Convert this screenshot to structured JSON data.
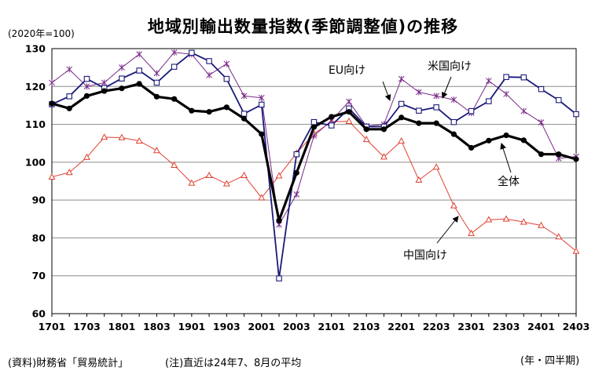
{
  "title": "地域別輸出数量指数(季節調整値)の推移",
  "unit_label": "(2020年=100)",
  "source_note": "(資料)財務省「貿易統計」",
  "remark_note": "(注)直近は24年7、8月の平均",
  "x_unit_label": "(年・四半期)",
  "chart_data": {
    "type": "line",
    "title": "地域別輸出数量指数(季節調整値)の推移",
    "xlabel": "(年・四半期)",
    "ylabel": "(2020年=100)",
    "ylim": [
      60,
      130
    ],
    "y_ticks": [
      60,
      70,
      80,
      90,
      100,
      110,
      120,
      130
    ],
    "grid": "horizontal",
    "x": [
      "1701",
      "1702",
      "1703",
      "1704",
      "1801",
      "1802",
      "1803",
      "1804",
      "1901",
      "1902",
      "1903",
      "1904",
      "2001",
      "2002",
      "2003",
      "2004",
      "2101",
      "2102",
      "2103",
      "2104",
      "2201",
      "2202",
      "2203",
      "2204",
      "2301",
      "2302",
      "2303",
      "2304",
      "2401",
      "2402",
      "2403"
    ],
    "x_tick_labels": [
      "1701",
      "1703",
      "1801",
      "1803",
      "1901",
      "1903",
      "2001",
      "2003",
      "2101",
      "2103",
      "2201",
      "2203",
      "2301",
      "2303",
      "2401",
      "2403"
    ],
    "series": [
      {
        "name": "全体",
        "color": "#000000",
        "marker": "circle",
        "values": [
          115.5,
          114.2,
          117.5,
          118.8,
          119.5,
          120.7,
          117.3,
          116.7,
          113.6,
          113.3,
          114.5,
          111.5,
          107.4,
          84.6,
          97.2,
          109.3,
          112.0,
          113.3,
          108.7,
          108.7,
          111.8,
          110.3,
          110.3,
          107.4,
          103.8,
          105.7,
          107.1,
          105.8,
          102.1,
          102.1,
          100.8
        ]
      },
      {
        "name": "米国向け",
        "color": "#1a1a7a",
        "marker": "square",
        "values": [
          115.3,
          117.4,
          122.0,
          119.6,
          122.1,
          124.2,
          121.0,
          125.2,
          128.9,
          126.7,
          122.0,
          112.8,
          115.2,
          69.3,
          102.1,
          110.6,
          109.7,
          114.2,
          109.4,
          109.4,
          115.4,
          113.6,
          114.5,
          110.6,
          113.5,
          116.1,
          122.5,
          122.4,
          119.3,
          116.4,
          112.7
        ]
      },
      {
        "name": "EU向け",
        "color": "#7a2a8a",
        "marker": "star",
        "values": [
          121.0,
          124.5,
          120.0,
          121.0,
          125.0,
          128.5,
          123.5,
          129.0,
          128.5,
          123.0,
          126.0,
          117.5,
          117.0,
          83.5,
          91.5,
          107.0,
          111.0,
          116.0,
          109.5,
          110.0,
          122.0,
          118.5,
          117.5,
          116.5,
          113.0,
          121.5,
          118.0,
          113.5,
          110.5,
          101.0,
          101.5
        ]
      },
      {
        "name": "中国向け",
        "color": "#e04030",
        "marker": "triangle",
        "values": [
          96.1,
          97.3,
          101.3,
          106.6,
          106.5,
          105.6,
          103.1,
          99.2,
          94.5,
          96.5,
          94.3,
          96.5,
          90.6,
          96.4,
          102.4,
          107.5,
          110.7,
          110.8,
          106.0,
          101.4,
          105.6,
          95.3,
          98.7,
          88.5,
          81.2,
          84.8,
          85.0,
          84.2,
          83.3,
          80.3,
          76.5
        ]
      }
    ],
    "annotations": [
      {
        "text": "EU向け",
        "series": "EU向け"
      },
      {
        "text": "米国向け",
        "series": "米国向け"
      },
      {
        "text": "全体",
        "series": "全体"
      },
      {
        "text": "中国向け",
        "series": "中国向け"
      }
    ]
  }
}
